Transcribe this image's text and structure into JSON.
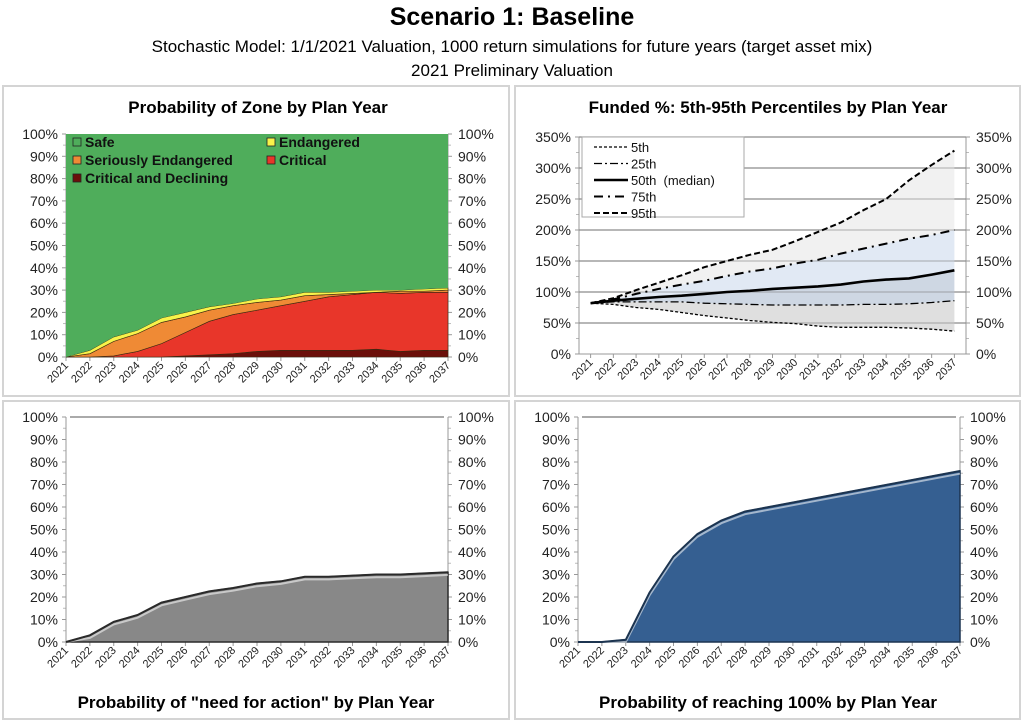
{
  "header": {
    "title": "Scenario 1: Baseline",
    "subtitle": "Stochastic Model: 1/1/2021 Valuation, 1000 return simulations for future years (target asset mix)",
    "subtitle2": "2021 Preliminary Valuation"
  },
  "chart_data": [
    {
      "id": "zone",
      "type": "area",
      "stacked": true,
      "title": "Probability of Zone by Plan Year",
      "categories": [
        "2021",
        "2022",
        "2023",
        "2024",
        "2025",
        "2026",
        "2027",
        "2028",
        "2029",
        "2030",
        "2031",
        "2032",
        "2033",
        "2034",
        "2035",
        "2036",
        "2037"
      ],
      "ylim": [
        0,
        100
      ],
      "yticks": [
        "0%",
        "10%",
        "20%",
        "30%",
        "40%",
        "50%",
        "60%",
        "70%",
        "80%",
        "90%",
        "100%"
      ],
      "legend_position": "top-left",
      "series": [
        {
          "name": "Critical and Declining",
          "color": "#6b0f0a",
          "values": [
            0,
            0,
            0,
            0,
            0,
            0.5,
            1,
            1.5,
            2.5,
            3,
            3,
            3,
            3,
            3.5,
            2.5,
            3,
            3
          ]
        },
        {
          "name": "Critical",
          "color": "#e8362a",
          "values": [
            0,
            0,
            0.5,
            2.5,
            6,
            10.5,
            15,
            17.5,
            18.5,
            20,
            22,
            24,
            25,
            25.5,
            26,
            26,
            26
          ]
        },
        {
          "name": "Seriously Endangered",
          "color": "#ef8a35",
          "values": [
            0,
            1.5,
            6.5,
            8,
            9.5,
            7,
            5,
            4,
            3.5,
            2.5,
            2.5,
            1,
            0.5,
            0,
            1,
            0.5,
            1
          ]
        },
        {
          "name": "Endangered",
          "color": "#f8f34a",
          "values": [
            0,
            1.5,
            2,
            1.5,
            2,
            2,
            1.5,
            1,
            1.5,
            1.5,
            1.5,
            1,
            1,
            1,
            0.5,
            1,
            1
          ]
        },
        {
          "name": "Safe",
          "color": "#4fad5b",
          "values": [
            100,
            97,
            91,
            88,
            82.5,
            80,
            77.5,
            76,
            74,
            73,
            71,
            71,
            70.5,
            70,
            70,
            69.5,
            69
          ]
        }
      ],
      "legend_order": [
        "Safe",
        "Endangered",
        "Seriously Endangered",
        "Critical",
        "Critical and Declining"
      ]
    },
    {
      "id": "funded",
      "type": "line",
      "title": "Funded %: 5th-95th Percentiles by Plan Year",
      "categories": [
        "2021",
        "2022",
        "2023",
        "2024",
        "2025",
        "2026",
        "2027",
        "2028",
        "2029",
        "2030",
        "2031",
        "2032",
        "2033",
        "2034",
        "2035",
        "2036",
        "2037"
      ],
      "ylim": [
        0,
        350
      ],
      "yticks": [
        "0%",
        "50%",
        "100%",
        "150%",
        "200%",
        "250%",
        "300%",
        "350%"
      ],
      "grid": true,
      "legend_position": "top-left",
      "series": [
        {
          "name": "5th",
          "values": [
            82,
            80,
            75,
            72,
            67,
            62,
            58,
            54,
            51,
            49,
            45,
            43,
            43,
            43,
            42,
            40,
            37
          ]
        },
        {
          "name": "25th",
          "values": [
            82,
            84,
            84,
            84,
            84,
            82,
            81,
            80,
            79,
            79,
            79,
            79,
            80,
            80,
            81,
            83,
            86
          ]
        },
        {
          "name": "50th  (median)",
          "values": [
            82,
            86,
            89,
            92,
            94,
            97,
            100,
            102,
            105,
            107,
            109,
            112,
            117,
            120,
            122,
            128,
            135
          ]
        },
        {
          "name": "75th",
          "values": [
            82,
            88,
            97,
            105,
            112,
            118,
            126,
            133,
            138,
            146,
            152,
            162,
            170,
            178,
            186,
            192,
            200
          ]
        },
        {
          "name": "95th",
          "values": [
            82,
            90,
            103,
            115,
            127,
            140,
            150,
            160,
            168,
            182,
            197,
            212,
            232,
            250,
            280,
            305,
            328
          ]
        }
      ]
    },
    {
      "id": "action",
      "type": "area",
      "title": "Probability of \"need for action\" by Plan Year",
      "categories": [
        "2021",
        "2022",
        "2023",
        "2024",
        "2025",
        "2026",
        "2027",
        "2028",
        "2029",
        "2030",
        "2031",
        "2032",
        "2033",
        "2034",
        "2035",
        "2036",
        "2037"
      ],
      "ylim": [
        0,
        100
      ],
      "yticks": [
        "0%",
        "10%",
        "20%",
        "30%",
        "40%",
        "50%",
        "60%",
        "70%",
        "80%",
        "90%",
        "100%"
      ],
      "color": "#888888",
      "values": [
        0,
        3,
        9,
        12,
        17.5,
        20,
        22.5,
        24,
        26,
        27,
        29,
        29,
        29.5,
        30,
        30,
        30.5,
        31
      ]
    },
    {
      "id": "reach",
      "type": "area",
      "title": "Probability of reaching 100% by Plan Year",
      "categories": [
        "2021",
        "2022",
        "2023",
        "2024",
        "2025",
        "2026",
        "2027",
        "2028",
        "2029",
        "2030",
        "2031",
        "2032",
        "2033",
        "2034",
        "2035",
        "2036",
        "2037"
      ],
      "ylim": [
        0,
        100
      ],
      "yticks": [
        "0%",
        "10%",
        "20%",
        "30%",
        "40%",
        "50%",
        "60%",
        "70%",
        "80%",
        "90%",
        "100%"
      ],
      "color": "#355f91",
      "values": [
        0,
        0,
        1,
        22,
        38,
        48,
        54,
        58,
        60,
        62,
        64,
        66,
        68,
        70,
        72,
        74,
        76
      ]
    }
  ]
}
